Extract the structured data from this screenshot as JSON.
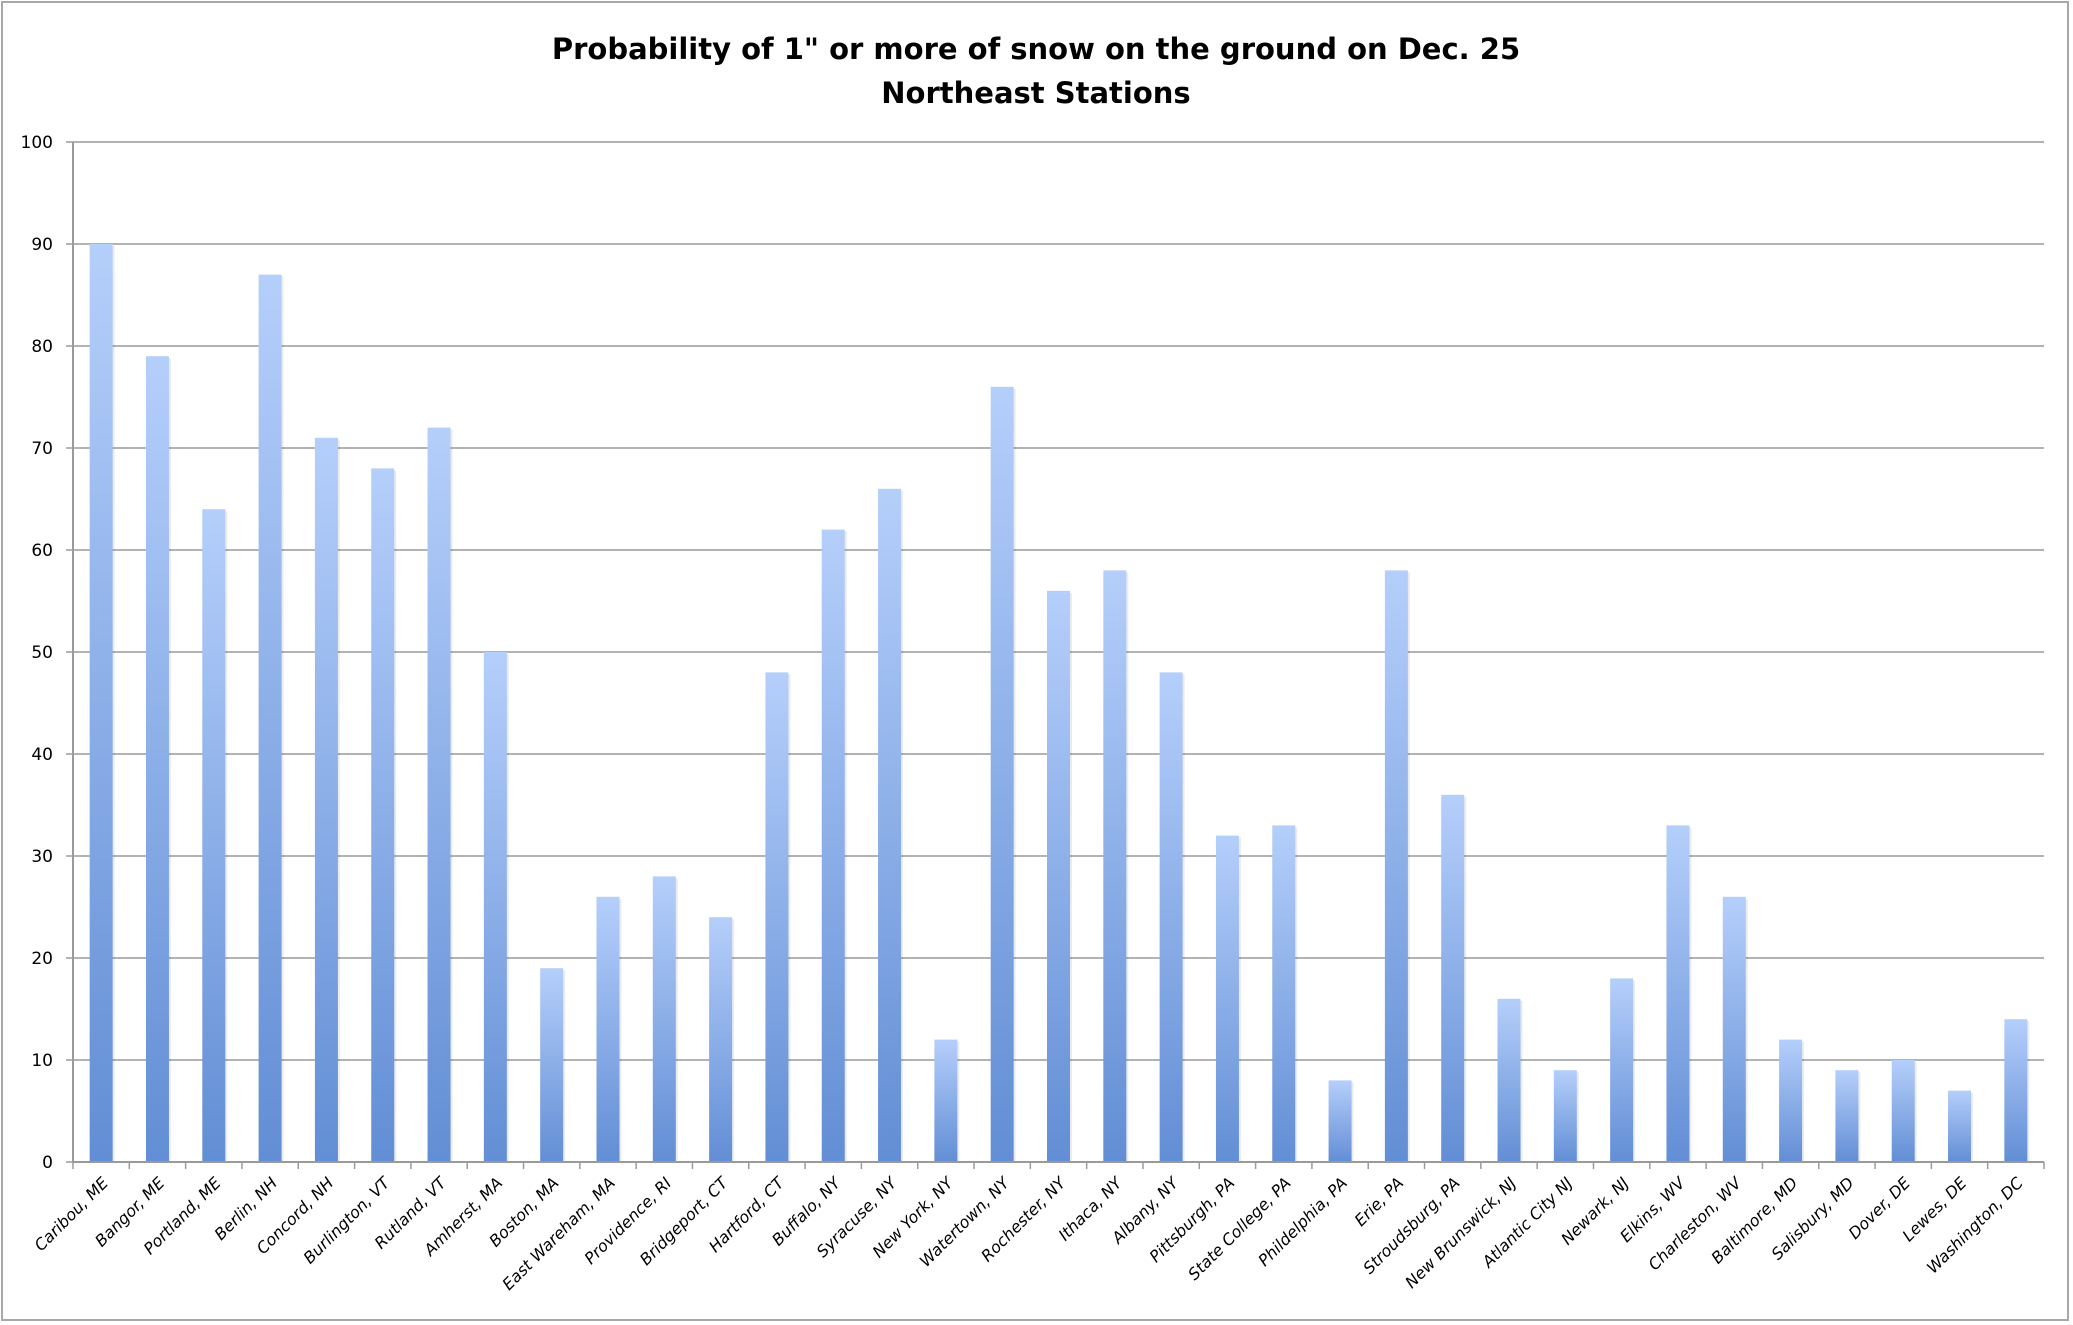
{
  "chart_data": {
    "type": "bar",
    "title": "Probability of 1\" or more of snow on the ground on Dec. 25",
    "subtitle": "Northeast Stations",
    "xlabel": "",
    "ylabel": "",
    "ylim": [
      0,
      100
    ],
    "yticks": [
      0,
      10,
      20,
      30,
      40,
      50,
      60,
      70,
      80,
      90,
      100
    ],
    "grid": true,
    "legend": "none",
    "bar_color_top": "#b5cffb",
    "bar_color_bottom": "#628ed5",
    "categories": [
      "Caribou, ME",
      "Bangor, ME",
      "Portland, ME",
      "Berlin, NH",
      "Concord, NH",
      "Burlington, VT",
      "Rutland, VT",
      "Amherst, MA",
      "Boston, MA",
      "East Wareham, MA",
      "Providence, RI",
      "Bridgeport, CT",
      "Hartford, CT",
      "Buffalo, NY",
      "Syracuse, NY",
      "New York, NY",
      "Watertown, NY",
      "Rochester, NY",
      "Ithaca, NY",
      "Albany, NY",
      "Pittsburgh, PA",
      "State College, PA",
      "Phildelphia, PA",
      "Erie, PA",
      "Stroudsburg, PA",
      "New Brunswick, NJ",
      "Atlantic City NJ",
      "Newark, NJ",
      "Elkins, WV",
      "Charleston, WV",
      "Baltimore, MD",
      "Salisbury, MD",
      "Dover, DE",
      "Lewes, DE",
      "Washington, DC"
    ],
    "values": [
      90,
      79,
      64,
      87,
      71,
      68,
      72,
      50,
      19,
      26,
      28,
      24,
      48,
      62,
      66,
      12,
      76,
      56,
      58,
      48,
      32,
      33,
      8,
      58,
      36,
      16,
      9,
      18,
      33,
      26,
      12,
      9,
      10,
      7,
      14
    ]
  }
}
